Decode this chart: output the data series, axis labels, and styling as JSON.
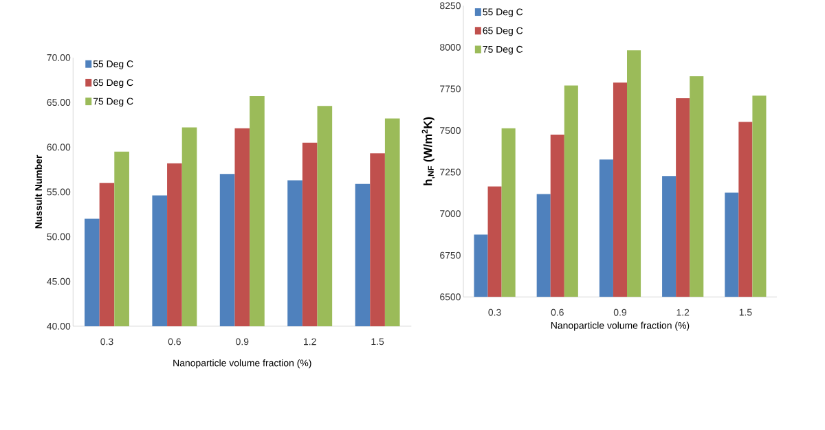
{
  "chart_data": [
    {
      "type": "bar",
      "categories": [
        "0.3",
        "0.6",
        "0.9",
        "1.2",
        "1.5"
      ],
      "xlabel": "Nanoparticle volume fraction (%)",
      "ylabel": "Nussult Number",
      "ylim": [
        40,
        70
      ],
      "yticks": [
        {
          "value": 40,
          "label": "40.00"
        },
        {
          "value": 45,
          "label": "45.00"
        },
        {
          "value": 50,
          "label": "50.00"
        },
        {
          "value": 55,
          "label": "55.00"
        },
        {
          "value": 60,
          "label": "60.00"
        },
        {
          "value": 65,
          "label": "65.00"
        },
        {
          "value": 70,
          "label": "70.00"
        }
      ],
      "legend": "top left",
      "series": [
        {
          "name": "55 Deg C",
          "color": "#4f81bd",
          "values": [
            52.0,
            54.6,
            57.0,
            56.3,
            55.9
          ]
        },
        {
          "name": "65 Deg C",
          "color": "#c0504d",
          "values": [
            56.0,
            58.2,
            62.1,
            60.5,
            59.3
          ]
        },
        {
          "name": "75 Deg C",
          "color": "#9bbb59",
          "values": [
            59.5,
            62.2,
            65.7,
            64.6,
            63.2
          ]
        }
      ]
    },
    {
      "type": "bar",
      "categories": [
        "0.3",
        "0.6",
        "0.9",
        "1.2",
        "1.5"
      ],
      "xlabel": "Nanoparticle volume fraction (%)",
      "ylabel": "h$_{,NF}$ (W/m$^{2}$K)",
      "ylim": [
        6500,
        8250
      ],
      "yticks": [
        6500,
        6750,
        7000,
        7250,
        7500,
        7750,
        8000,
        8250
      ],
      "legend": "top left",
      "series": [
        {
          "name": "55 Deg C",
          "color": "#4f81bd",
          "values": [
            6875,
            7118,
            7326,
            7226,
            7126
          ]
        },
        {
          "name": "65 Deg C",
          "color": "#c0504d",
          "values": [
            7164,
            7475,
            7788,
            7694,
            7551
          ]
        },
        {
          "name": "75 Deg C",
          "color": "#9bbb59",
          "values": [
            7513,
            7770,
            7982,
            7826,
            7709
          ]
        }
      ]
    }
  ]
}
